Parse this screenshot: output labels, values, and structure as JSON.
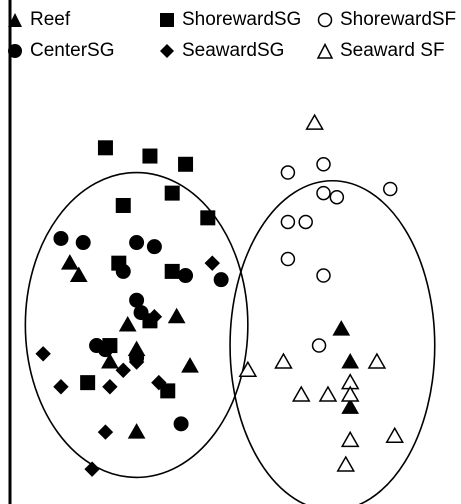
{
  "colors": {
    "ink": "#000000",
    "background": "#ffffff"
  },
  "legend": {
    "items": [
      {
        "label": "Reef",
        "marker": "triangle-filled-icon"
      },
      {
        "label": "ShorewardSG",
        "marker": "square-filled-icon"
      },
      {
        "label": "ShorewardSF",
        "marker": "circle-open-icon"
      },
      {
        "label": "CenterSG",
        "marker": "circle-filled-icon"
      },
      {
        "label": "SeawardSG",
        "marker": "diamond-filled-icon"
      },
      {
        "label": "Seaward SF",
        "marker": "triangle-open-icon"
      }
    ]
  },
  "chart_data": {
    "type": "scatter",
    "title": "",
    "xlabel": "",
    "ylabel": "",
    "xlim": [
      0,
      100
    ],
    "ylim": [
      0,
      100
    ],
    "grid": false,
    "legend_position": "top",
    "groups": [
      {
        "name": "Left ellipse",
        "center": [
          28,
          42
        ],
        "radii": [
          25,
          37
        ]
      },
      {
        "name": "Right ellipse",
        "center": [
          72,
          37
        ],
        "radii": [
          23,
          40
        ]
      }
    ],
    "series": [
      {
        "name": "Reef",
        "marker": "triangle-filled",
        "points": [
          [
            13,
            57
          ],
          [
            15,
            54
          ],
          [
            26,
            42
          ],
          [
            37,
            44
          ],
          [
            40,
            32
          ],
          [
            74,
            41
          ],
          [
            76,
            33
          ],
          [
            76,
            22
          ],
          [
            28,
            16
          ],
          [
            22,
            33
          ],
          [
            28,
            36
          ]
        ]
      },
      {
        "name": "ShorewardSG",
        "marker": "square-filled",
        "points": [
          [
            21,
            85
          ],
          [
            31,
            83
          ],
          [
            39,
            81
          ],
          [
            36,
            74
          ],
          [
            25,
            71
          ],
          [
            44,
            68
          ],
          [
            24,
            57
          ],
          [
            36,
            55
          ],
          [
            17,
            28
          ],
          [
            35,
            26
          ],
          [
            22,
            37
          ],
          [
            31,
            43
          ]
        ]
      },
      {
        "name": "ShorewardSF",
        "marker": "circle-open",
        "points": [
          [
            62,
            79
          ],
          [
            70,
            81
          ],
          [
            70,
            74
          ],
          [
            73,
            73
          ],
          [
            85,
            75
          ],
          [
            62,
            67
          ],
          [
            66,
            67
          ],
          [
            62,
            58
          ],
          [
            70,
            54
          ],
          [
            69,
            37
          ]
        ]
      },
      {
        "name": "CenterSG",
        "marker": "circle-filled",
        "points": [
          [
            11,
            63
          ],
          [
            16,
            62
          ],
          [
            28,
            62
          ],
          [
            32,
            61
          ],
          [
            25,
            55
          ],
          [
            39,
            54
          ],
          [
            47,
            53
          ],
          [
            28,
            48
          ],
          [
            29,
            45
          ],
          [
            19,
            37
          ],
          [
            21,
            36
          ],
          [
            28,
            34
          ],
          [
            38,
            18
          ]
        ]
      },
      {
        "name": "SeawardSG",
        "marker": "diamond-filled",
        "points": [
          [
            7,
            35
          ],
          [
            11,
            27
          ],
          [
            22,
            27
          ],
          [
            25,
            31
          ],
          [
            28,
            33
          ],
          [
            33,
            28
          ],
          [
            45,
            57
          ],
          [
            32,
            44
          ],
          [
            21,
            16
          ],
          [
            18,
            7
          ]
        ]
      },
      {
        "name": "Seaward SF",
        "marker": "triangle-open",
        "points": [
          [
            68,
            91
          ],
          [
            53,
            31
          ],
          [
            61,
            33
          ],
          [
            65,
            25
          ],
          [
            71,
            25
          ],
          [
            76,
            28
          ],
          [
            82,
            33
          ],
          [
            76,
            25
          ],
          [
            86,
            15
          ],
          [
            76,
            14
          ],
          [
            75,
            8
          ]
        ]
      }
    ]
  }
}
